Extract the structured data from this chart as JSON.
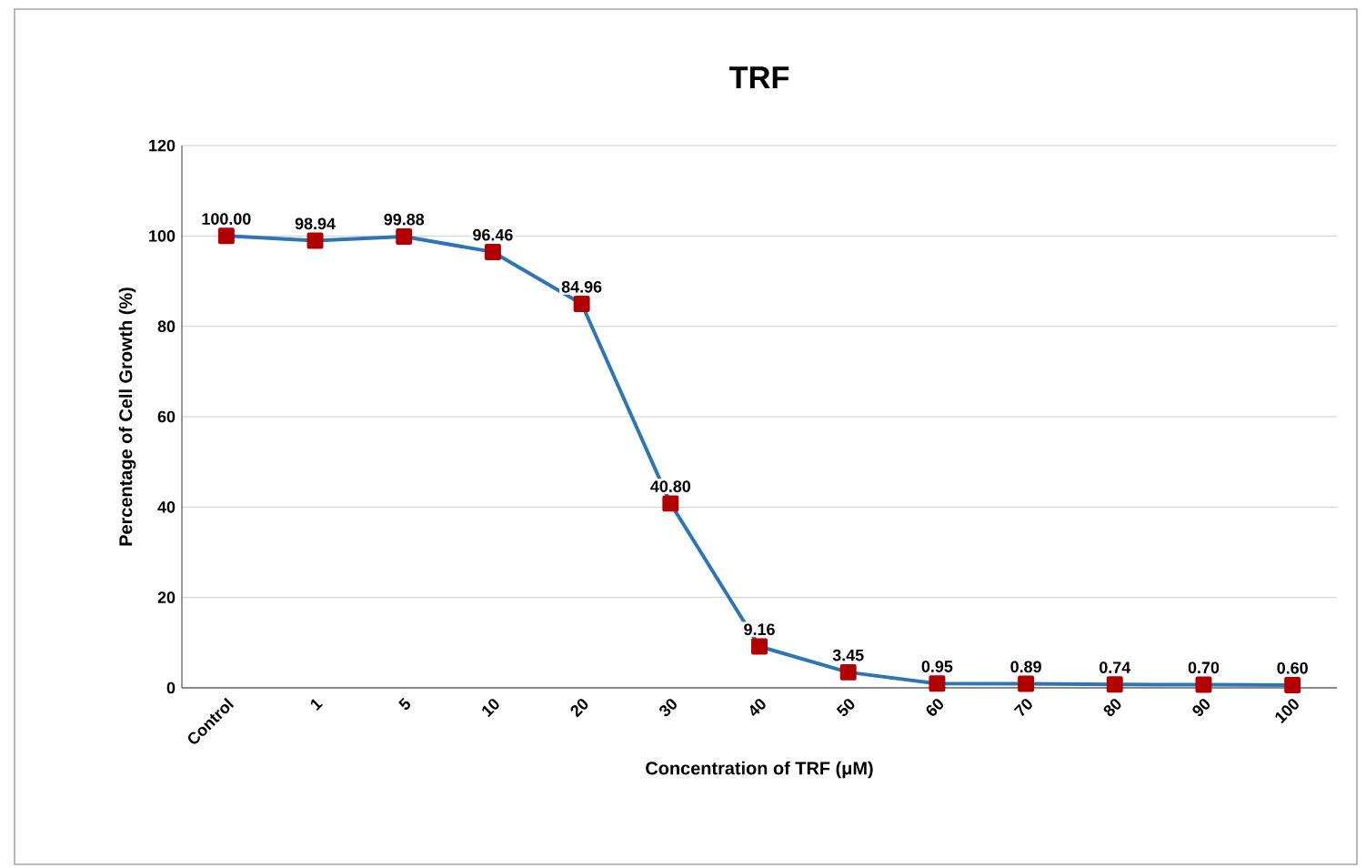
{
  "chart_data": {
    "type": "line",
    "title": "TRF",
    "xlabel": "Concentration of TRF (μM)",
    "ylabel": "Percentage of Cell Growth (%)",
    "categories": [
      "Control",
      "1",
      "5",
      "10",
      "20",
      "30",
      "40",
      "50",
      "60",
      "70",
      "80",
      "90",
      "100"
    ],
    "series": [
      {
        "color": "#2e75b6",
        "values": [
          100,
          98.94,
          99.88,
          96.46,
          84.96,
          40.8,
          9.16,
          3.45,
          0.95,
          0.89,
          0.74,
          0.7,
          0.6
        ],
        "value_labels": [
          "100.00",
          "98.94",
          "99.88",
          "96.46",
          "84.96",
          "40.80",
          "9.16",
          "3.45",
          "0.95",
          "0.89",
          "0.74",
          "0.70",
          "0.60"
        ]
      }
    ],
    "ylim": [
      0,
      120
    ],
    "yticks": [
      0,
      20,
      40,
      60,
      80,
      100,
      120
    ],
    "grid": "y",
    "marker": "square",
    "line_style": "solid"
  }
}
